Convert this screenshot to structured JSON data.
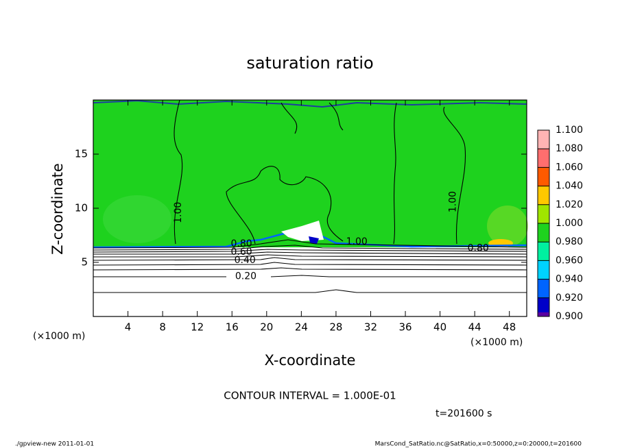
{
  "chart_data": {
    "type": "contour",
    "title": "saturation ratio",
    "x_label": "X-coordinate",
    "y_label": "Z-coordinate",
    "x_unit": "(×1000 m)",
    "xlim": [
      0,
      50
    ],
    "ylim": [
      0,
      20
    ],
    "xticks": [
      4,
      8,
      12,
      16,
      20,
      24,
      28,
      32,
      36,
      40,
      44,
      48
    ],
    "yticks": [
      5,
      10,
      15
    ],
    "colorbar": {
      "ticks": [
        {
          "value": 0.9,
          "label": "0.900"
        },
        {
          "value": 0.92,
          "label": "0.920"
        },
        {
          "value": 0.94,
          "label": "0.940"
        },
        {
          "value": 0.96,
          "label": "0.960"
        },
        {
          "value": 0.98,
          "label": "0.980"
        },
        {
          "value": 1.0,
          "label": "1.000"
        },
        {
          "value": 1.02,
          "label": "1.020"
        },
        {
          "value": 1.04,
          "label": "1.040"
        },
        {
          "value": 1.06,
          "label": "1.060"
        },
        {
          "value": 1.08,
          "label": "1.080"
        },
        {
          "value": 1.1,
          "label": "1.100"
        }
      ],
      "colors": [
        "#5a00a0",
        "#0000c8",
        "#0064ff",
        "#00d2ff",
        "#00f0a0",
        "#1ed21e",
        "#a0e600",
        "#ffc800",
        "#ff5a00",
        "#ff6e6e",
        "#ffb4b4"
      ]
    },
    "contour_labels": [
      {
        "label": "1.00",
        "x": 9.8,
        "z": 9.6,
        "rotated": true
      },
      {
        "label": "1.00",
        "x": 41.5,
        "z": 10.6,
        "rotated": true
      },
      {
        "label": "0.80",
        "x": 17.1,
        "z": 6.7,
        "rotated": false
      },
      {
        "label": "0.60",
        "x": 17.1,
        "z": 5.95,
        "rotated": false
      },
      {
        "label": "0.40",
        "x": 17.5,
        "z": 5.2,
        "rotated": false
      },
      {
        "label": "0.20",
        "x": 17.6,
        "z": 3.7,
        "rotated": false
      },
      {
        "label": "1.00",
        "x": 30.4,
        "z": 6.9,
        "rotated": false
      },
      {
        "label": "0.80",
        "x": 44.4,
        "z": 6.3,
        "rotated": false
      }
    ],
    "contour_interval_text": "CONTOUR INTERVAL = 1.000E-01",
    "time_text": "t=201600 s",
    "footer_left": "./gpview-new   2011-01-01",
    "footer_right": "MarsCond_SatRatio.nc@SatRatio,x=0:50000,z=0:20000,t=201600"
  }
}
